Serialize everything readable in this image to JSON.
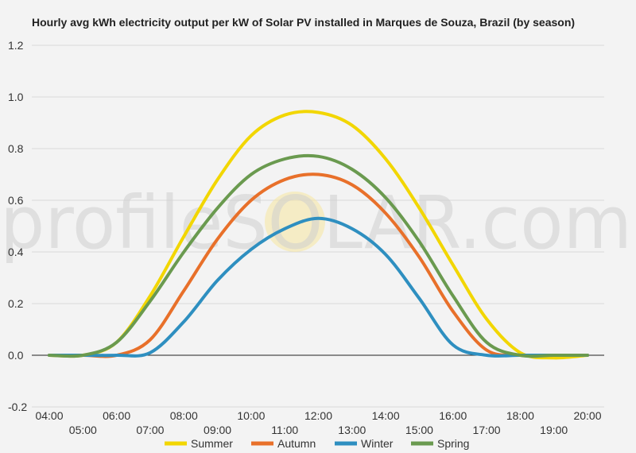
{
  "chart_data": {
    "type": "line",
    "title": "Hourly avg kWh electricity output per kW of Solar PV installed in Marques de Souza, Brazil (by season)",
    "watermark": "profileSOLAR.com",
    "xlabel": "",
    "ylabel": "",
    "x_ticks_top": [
      "04:00",
      "06:00",
      "08:00",
      "10:00",
      "12:00",
      "14:00",
      "16:00",
      "18:00",
      "20:00"
    ],
    "x_ticks_bottom": [
      "05:00",
      "07:00",
      "09:00",
      "11:00",
      "13:00",
      "15:00",
      "17:00",
      "19:00"
    ],
    "x_hours": [
      4,
      5,
      6,
      7,
      8,
      9,
      10,
      11,
      12,
      13,
      14,
      15,
      16,
      17,
      18,
      19,
      20
    ],
    "ylim": [
      -0.2,
      1.2
    ],
    "y_ticks": [
      "-0.2",
      "0.0",
      "0.2",
      "0.4",
      "0.6",
      "0.8",
      "1.0",
      "1.2"
    ],
    "grid": true,
    "legend_position": "bottom",
    "series": [
      {
        "name": "Summer",
        "color": "#f2d600",
        "values": [
          0.0,
          0.0,
          0.05,
          0.23,
          0.46,
          0.68,
          0.85,
          0.93,
          0.94,
          0.89,
          0.76,
          0.57,
          0.35,
          0.14,
          0.01,
          -0.01,
          0.0
        ]
      },
      {
        "name": "Autumn",
        "color": "#e8702a",
        "values": [
          0.0,
          0.0,
          0.0,
          0.06,
          0.25,
          0.45,
          0.6,
          0.68,
          0.7,
          0.66,
          0.55,
          0.38,
          0.17,
          0.02,
          0.0,
          0.0,
          0.0
        ]
      },
      {
        "name": "Winter",
        "color": "#2e8fc0",
        "values": [
          0.0,
          0.0,
          0.0,
          0.01,
          0.13,
          0.29,
          0.41,
          0.49,
          0.53,
          0.49,
          0.39,
          0.22,
          0.04,
          0.0,
          0.0,
          0.0,
          0.0
        ]
      },
      {
        "name": "Spring",
        "color": "#6a9a4f",
        "values": [
          0.0,
          0.0,
          0.05,
          0.21,
          0.4,
          0.57,
          0.7,
          0.76,
          0.77,
          0.72,
          0.61,
          0.44,
          0.23,
          0.05,
          0.0,
          0.0,
          0.0
        ]
      }
    ]
  }
}
